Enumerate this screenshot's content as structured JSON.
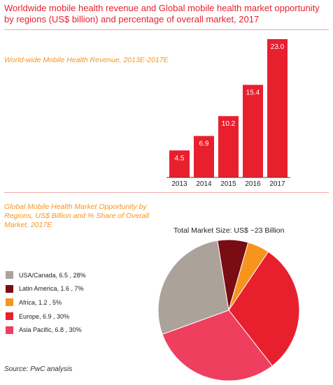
{
  "title": "Worldwide mobile health revenue and Global mobile health market opportunity by regions (US$ billion) and percentage of overall market, 2017",
  "source": "Source: PwC analysis",
  "colors": {
    "accent": "#e8202e",
    "subtitle": "#f7941d"
  },
  "chart_data": [
    {
      "type": "bar",
      "title": "World-wide Mobile Health Revenue, 2013E-2017E",
      "categories": [
        "2013",
        "2014",
        "2015",
        "2016",
        "2017"
      ],
      "values": [
        4.5,
        6.9,
        10.2,
        15.4,
        23.0
      ],
      "value_labels": [
        "4.5",
        "6.9",
        "10.2",
        "15.4",
        "23.0"
      ],
      "bar_color": "#e8202e",
      "ylim": [
        0,
        23.0
      ]
    },
    {
      "type": "pie",
      "title": "Global Mobile Health Market Opportunity by Regions, US$ Billion and % Share of Overall Market, 2017E",
      "annotation": "Total Market Size: US$ ~23 Billion",
      "slices": [
        {
          "label": "USA/Canada, 6.5 , 28%",
          "value": 28,
          "color": "#aba29a"
        },
        {
          "label": "Latin America, 1.6 , 7%",
          "value": 7,
          "color": "#7a0c14"
        },
        {
          "label": "Africa, 1.2 , 5%",
          "value": 5,
          "color": "#f7941d"
        },
        {
          "label": "Europe, 6.9 , 30%",
          "value": 30,
          "color": "#e8202e"
        },
        {
          "label": "Asia Pacific, 6.8 , 30%",
          "value": 30,
          "color": "#ef3f5e"
        }
      ]
    }
  ]
}
